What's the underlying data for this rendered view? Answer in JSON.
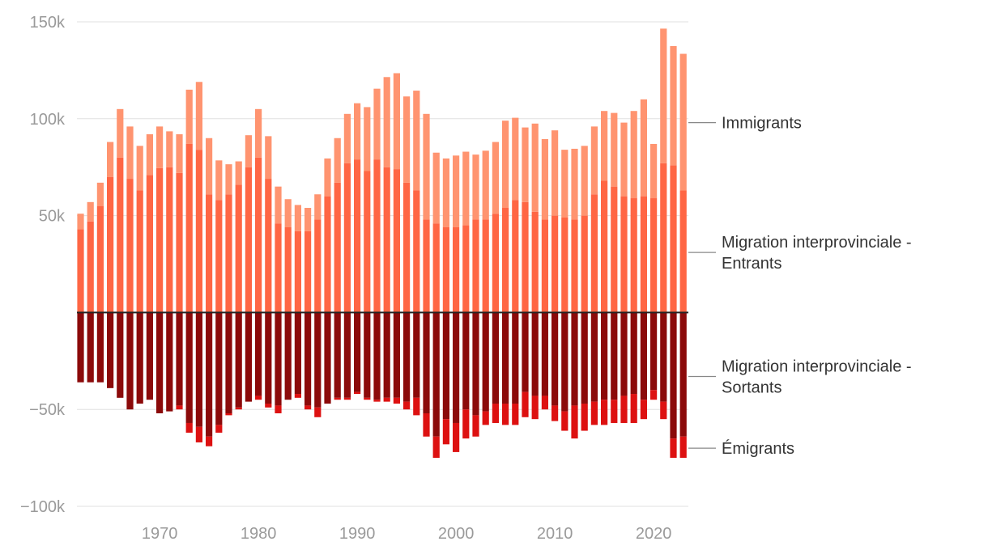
{
  "chart_data": {
    "type": "bar",
    "stacked": true,
    "x_start": 1962,
    "x": [
      1962,
      1963,
      1964,
      1965,
      1966,
      1967,
      1968,
      1969,
      1970,
      1971,
      1972,
      1973,
      1974,
      1975,
      1976,
      1977,
      1978,
      1979,
      1980,
      1981,
      1982,
      1983,
      1984,
      1985,
      1986,
      1987,
      1988,
      1989,
      1990,
      1991,
      1992,
      1993,
      1994,
      1995,
      1996,
      1997,
      1998,
      1999,
      2000,
      2001,
      2002,
      2003,
      2004,
      2005,
      2006,
      2007,
      2008,
      2009,
      2010,
      2011,
      2012,
      2013,
      2014,
      2015,
      2016,
      2017,
      2018,
      2019,
      2020,
      2021,
      2022,
      2023
    ],
    "series": [
      {
        "name": "Migration interprovinciale - Entrants",
        "color": "#ff6644",
        "values": [
          43000,
          47000,
          55000,
          70000,
          80000,
          69000,
          63000,
          71000,
          74500,
          75000,
          72000,
          87000,
          84000,
          61000,
          58000,
          61000,
          66000,
          75000,
          80000,
          69000,
          46000,
          44000,
          42000,
          42000,
          48000,
          60000,
          67000,
          77000,
          79000,
          73000,
          79000,
          75000,
          74000,
          67000,
          63000,
          48000,
          46000,
          44000,
          44000,
          45000,
          48000,
          48000,
          51000,
          54000,
          58000,
          57000,
          52000,
          48000,
          50000,
          49000,
          48000,
          50000,
          61000,
          68000,
          65000,
          60000,
          59000,
          60000,
          59000,
          77000,
          76000,
          63000
        ]
      },
      {
        "name": "Immigrants",
        "color": "#ff9470",
        "values": [
          8000,
          10000,
          12000,
          18000,
          25000,
          27000,
          23000,
          21000,
          21500,
          18500,
          20000,
          28000,
          35000,
          29000,
          20500,
          15500,
          12000,
          16500,
          25000,
          22000,
          19000,
          14500,
          13500,
          12000,
          13000,
          19500,
          23000,
          25500,
          29000,
          33000,
          36500,
          46500,
          49500,
          44500,
          51500,
          54500,
          36500,
          35500,
          37000,
          38000,
          33500,
          35500,
          37000,
          45000,
          42500,
          38500,
          45500,
          41500,
          44000,
          35000,
          36500,
          36000,
          35000,
          36000,
          38000,
          38000,
          45000,
          50000,
          28000,
          69500,
          61500,
          70500
        ]
      },
      {
        "name": "Migration interprovinciale - Sortants",
        "color": "#8b0a0a",
        "values": [
          -36000,
          -36000,
          -36000,
          -39000,
          -44000,
          -50000,
          -47000,
          -45000,
          -52000,
          -51000,
          -48000,
          -57000,
          -59000,
          -64000,
          -58000,
          -52000,
          -49000,
          -46000,
          -43000,
          -47000,
          -48000,
          -45000,
          -42000,
          -48000,
          -49000,
          -47000,
          -44000,
          -44000,
          -41000,
          -44000,
          -45000,
          -44000,
          -44000,
          -46000,
          -44000,
          -52000,
          -64000,
          -55000,
          -57000,
          -50000,
          -53000,
          -51000,
          -47000,
          -47000,
          -47000,
          -41000,
          -43000,
          -43000,
          -48000,
          -51000,
          -48000,
          -47000,
          -46000,
          -45000,
          -45000,
          -43000,
          -42000,
          -45000,
          -40000,
          -46000,
          -65000,
          -64000
        ]
      },
      {
        "name": "Émigrants",
        "color": "#dd1111",
        "values": [
          0,
          0,
          0,
          0,
          0,
          0,
          0,
          0,
          0,
          0,
          -2000,
          -5000,
          -8000,
          -5000,
          -4000,
          -1000,
          -1000,
          0,
          -2000,
          -2000,
          -4000,
          0,
          -2000,
          -2000,
          -5000,
          0,
          -1000,
          -1000,
          -1000,
          -1000,
          -1000,
          -2000,
          -3000,
          -4000,
          -9000,
          -12000,
          -11000,
          -13000,
          -15000,
          -15000,
          -11000,
          -7000,
          -10000,
          -11000,
          -11000,
          -13000,
          -12000,
          -7000,
          -8000,
          -10000,
          -17000,
          -14000,
          -12000,
          -13000,
          -12000,
          -14000,
          -15000,
          -10000,
          -5000,
          -9000,
          -10000,
          -11000
        ]
      }
    ],
    "ylim": [
      -100000,
      150000
    ],
    "y_ticks": [
      150000,
      100000,
      50000,
      -50000,
      -100000
    ],
    "y_tick_labels": [
      "150k",
      "100k",
      "50k",
      "−50k",
      "−100k"
    ],
    "x_ticks": [
      1970,
      1980,
      1990,
      2000,
      2010,
      2020
    ],
    "x_tick_labels": [
      "1970",
      "1980",
      "1990",
      "2000",
      "2010",
      "2020"
    ],
    "legend": [
      {
        "lines": [
          "Immigrants"
        ],
        "anchor_value": 98000
      },
      {
        "lines": [
          "Migration interprovinciale -",
          "Entrants"
        ],
        "anchor_value": 31000
      },
      {
        "lines": [
          "Migration interprovinciale -",
          "Sortants"
        ],
        "anchor_value": -33000
      },
      {
        "lines": [
          "Émigrants"
        ],
        "anchor_value": -70000
      }
    ],
    "legend_placement": "right",
    "title": "",
    "xlabel": "",
    "ylabel": ""
  }
}
